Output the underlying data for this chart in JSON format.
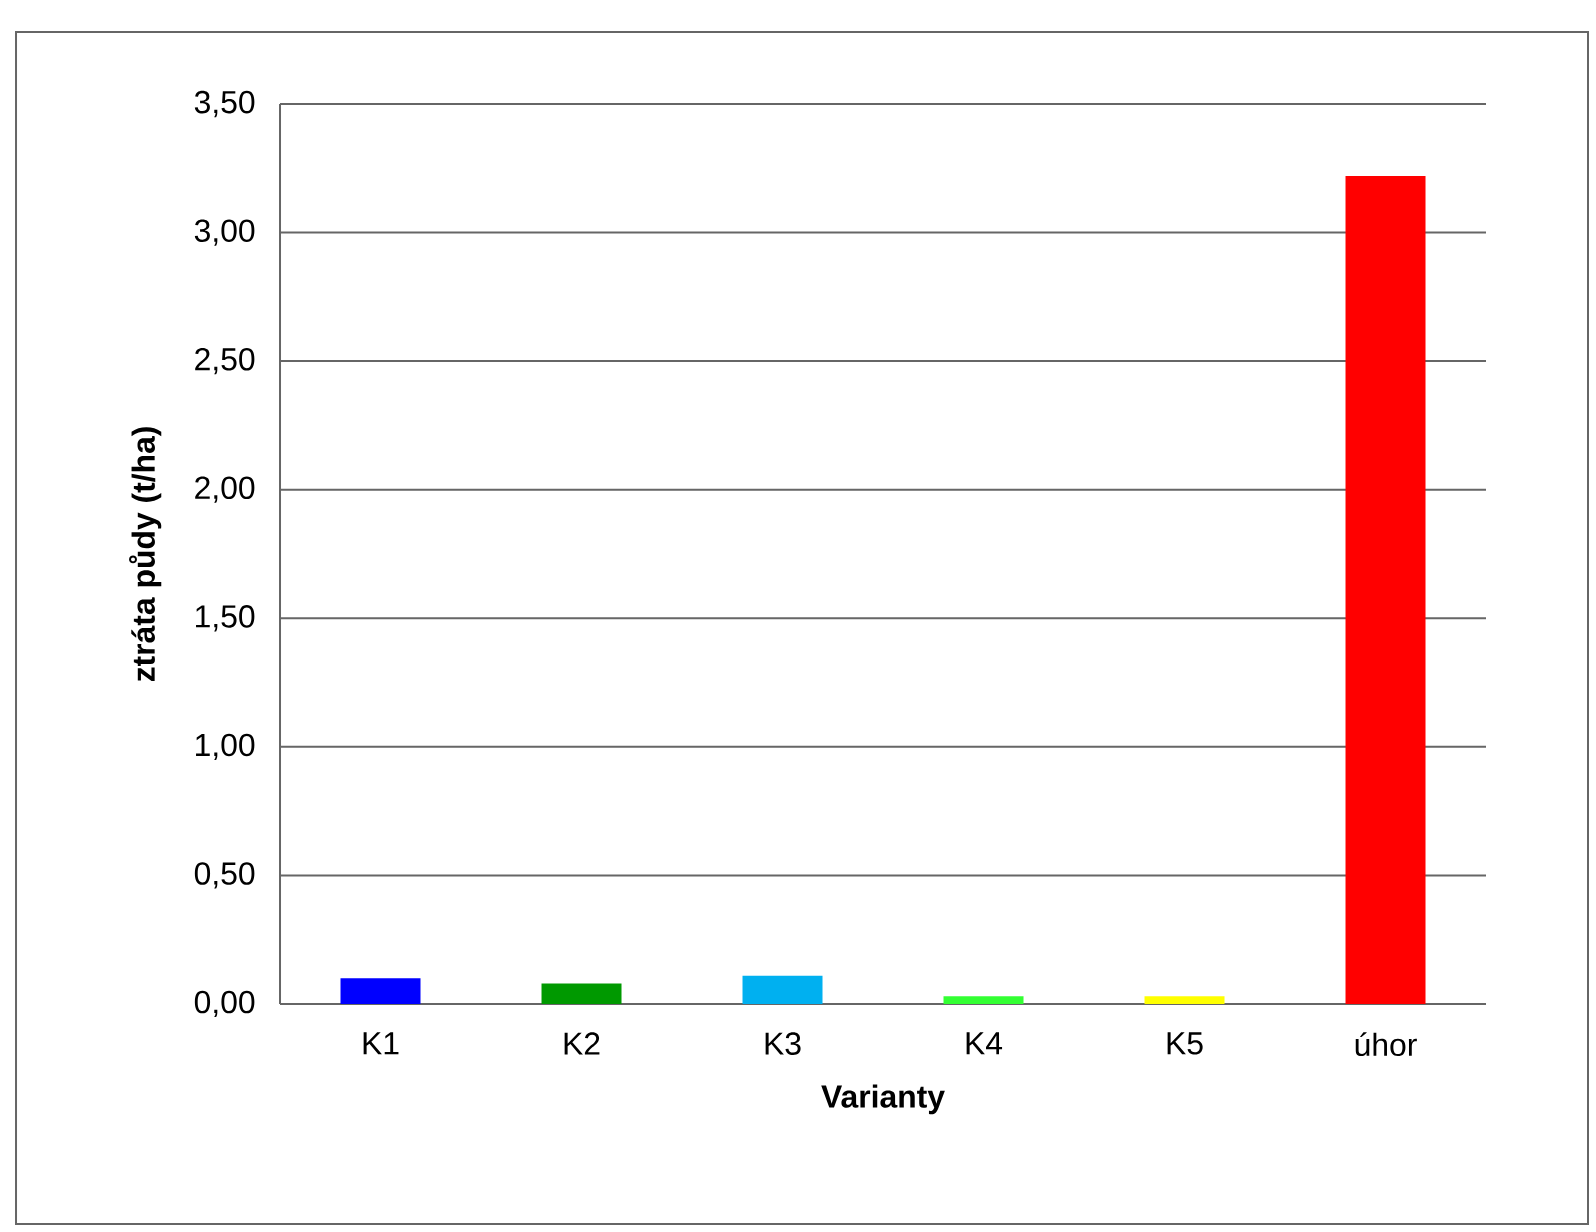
{
  "chart_data": {
    "type": "bar",
    "categories": [
      "K1",
      "K2",
      "K3",
      "K4",
      "K5",
      "úhor"
    ],
    "values": [
      0.1,
      0.08,
      0.11,
      0.03,
      0.03,
      3.22
    ],
    "colors": [
      "#0000ff",
      "#009900",
      "#00b0f0",
      "#33ff33",
      "#ffff00",
      "#ff0000"
    ],
    "xlabel": "Varianty",
    "ylabel": "ztráta půdy (t/ha)",
    "ylim": [
      0,
      3.5
    ],
    "yticks": [
      {
        "value": 0,
        "label": "0,00"
      },
      {
        "value": 0.5,
        "label": "0,50"
      },
      {
        "value": 1,
        "label": "1,00"
      },
      {
        "value": 1.5,
        "label": "1,50"
      },
      {
        "value": 2,
        "label": "2,00"
      },
      {
        "value": 2.5,
        "label": "2,50"
      },
      {
        "value": 3,
        "label": "3,00"
      },
      {
        "value": 3.5,
        "label": "3,50"
      }
    ],
    "grid": "y"
  }
}
